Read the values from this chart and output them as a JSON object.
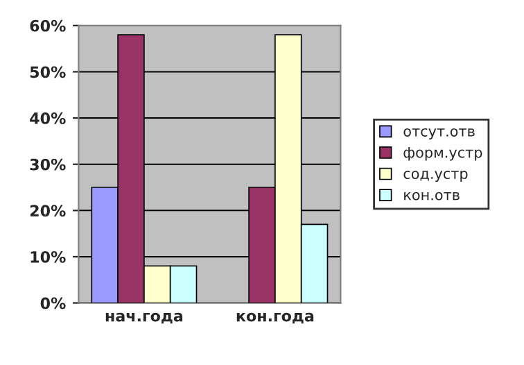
{
  "chart_data": {
    "type": "bar",
    "categories": [
      "нач.года",
      "кон.года"
    ],
    "series": [
      {
        "name": "отсут.отв",
        "color": "#9999ff",
        "values": [
          25,
          0
        ]
      },
      {
        "name": "форм.устр",
        "color": "#993366",
        "values": [
          58,
          25
        ]
      },
      {
        "name": "сод.устр",
        "color": "#ffffcc",
        "values": [
          8,
          58
        ]
      },
      {
        "name": "кон.отв",
        "color": "#ccffff",
        "values": [
          8,
          17
        ]
      }
    ],
    "ylim": [
      0,
      60
    ],
    "yticks": [
      {
        "value": 0,
        "label": "0%"
      },
      {
        "value": 10,
        "label": "10%"
      },
      {
        "value": 20,
        "label": "20%"
      },
      {
        "value": 30,
        "label": "30%"
      },
      {
        "value": 40,
        "label": "40%"
      },
      {
        "value": 50,
        "label": "50%"
      },
      {
        "value": 60,
        "label": "60%"
      }
    ],
    "grid": "y",
    "legend": "right"
  }
}
